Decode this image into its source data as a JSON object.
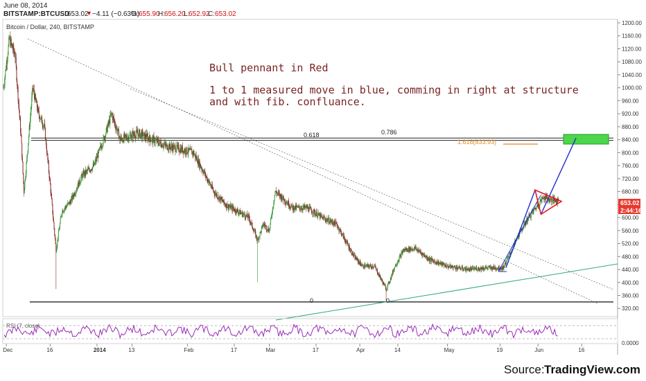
{
  "header": {
    "date": "June 08, 2014",
    "symbol": "BITSTAMP:BTCUSD",
    "last": "653.02",
    "change": "−4.11 (−0.63%)",
    "open_label": "O:",
    "open": "655.90",
    "high_label": "H:",
    "high": "656.20",
    "low_label": "L:",
    "low": "652.92",
    "close_label": "C:",
    "close": "653.02",
    "down_arrow": "▼"
  },
  "pane_title": "Bitcoin / Dollar, 240, BITSTAMP",
  "annotations": {
    "line1": "Bull pennant in Red",
    "line2": "1 to 1 measured move in blue, comming in right at structure",
    "line3": "and with fib. confluance."
  },
  "fib_labels": {
    "f0618": "0.618",
    "f0786": "0.786",
    "f1618": "1.618(833.93)",
    "zero_left": "0",
    "zero_right": "0"
  },
  "price_tag": {
    "price": "653.02",
    "timer": "2:44:16"
  },
  "rsi_label": "RSI (7, close)",
  "rsi_axis": "0.0000",
  "source": {
    "prefix": "Source: ",
    "name": "TradingView.com"
  },
  "colors": {
    "bull": "#3a9a3a",
    "bear": "#8b2a2a",
    "pennant": "#e8141a",
    "measured_move": "#1f2ecc",
    "trendline_green": "#2aa87a",
    "target_zone": "#4bd64b",
    "rsi_line": "#9a2ab8",
    "fib_1618": "#e08a1e",
    "price_tag": "#e8382e"
  },
  "chart_data": {
    "type": "candlestick",
    "title": "Bitcoin / Dollar, 240, BITSTAMP",
    "xlabel": "",
    "ylabel": "",
    "ylim": [
      300,
      1200
    ],
    "yticks": [
      320,
      360,
      400,
      440,
      480,
      520,
      560,
      600,
      640,
      680,
      720,
      760,
      800,
      840,
      880,
      920,
      960,
      1000,
      1040,
      1080,
      1120,
      1160,
      1200
    ],
    "ytick_labels": [
      "320.00",
      "360.00",
      "400.00",
      "440.00",
      "480.00",
      "520.00",
      "560.00",
      "600.00",
      "640.00",
      "680.00",
      "720.00",
      "760.00",
      "800.00",
      "840.00",
      "880.00",
      "920.00",
      "960.00",
      "1000.00",
      "1040.00",
      "1080.00",
      "1120.00",
      "1160.00",
      "1200.00"
    ],
    "xticks": [
      {
        "label": "Dec",
        "x": "2013-12-01"
      },
      {
        "label": "16",
        "x": "2013-12-16"
      },
      {
        "label": "2014",
        "x": "2014-01-01"
      },
      {
        "label": "13",
        "x": "2014-01-13"
      },
      {
        "label": "Feb",
        "x": "2014-02-01"
      },
      {
        "label": "17",
        "x": "2014-02-17"
      },
      {
        "label": "Mar",
        "x": "2014-03-01"
      },
      {
        "label": "17",
        "x": "2014-03-17"
      },
      {
        "label": "Apr",
        "x": "2014-04-01"
      },
      {
        "label": "14",
        "x": "2014-04-14"
      },
      {
        "label": "May",
        "x": "2014-05-01"
      },
      {
        "label": "19",
        "x": "2014-05-19"
      },
      {
        "label": "Jun",
        "x": "2014-06-01"
      },
      {
        "label": "16",
        "x": "2014-06-16"
      }
    ],
    "price_path": [
      [
        "2013-11-30",
        1000
      ],
      [
        "2013-12-02",
        1150
      ],
      [
        "2013-12-04",
        1100
      ],
      [
        "2013-12-06",
        850
      ],
      [
        "2013-12-07",
        680
      ],
      [
        "2013-12-08",
        780
      ],
      [
        "2013-12-10",
        1000
      ],
      [
        "2013-12-12",
        920
      ],
      [
        "2013-12-14",
        880
      ],
      [
        "2013-12-16",
        700
      ],
      [
        "2013-12-18",
        500
      ],
      [
        "2013-12-20",
        620
      ],
      [
        "2013-12-23",
        650
      ],
      [
        "2013-12-27",
        730
      ],
      [
        "2013-12-31",
        760
      ],
      [
        "2014-01-04",
        860
      ],
      [
        "2014-01-06",
        920
      ],
      [
        "2014-01-09",
        840
      ],
      [
        "2014-01-12",
        850
      ],
      [
        "2014-01-15",
        860
      ],
      [
        "2014-01-20",
        840
      ],
      [
        "2014-01-25",
        820
      ],
      [
        "2014-01-30",
        810
      ],
      [
        "2014-02-03",
        800
      ],
      [
        "2014-02-06",
        750
      ],
      [
        "2014-02-10",
        680
      ],
      [
        "2014-02-14",
        640
      ],
      [
        "2014-02-18",
        620
      ],
      [
        "2014-02-22",
        600
      ],
      [
        "2014-02-25",
        530
      ],
      [
        "2014-02-27",
        580
      ],
      [
        "2014-03-01",
        560
      ],
      [
        "2014-03-03",
        680
      ],
      [
        "2014-03-05",
        665
      ],
      [
        "2014-03-09",
        630
      ],
      [
        "2014-03-14",
        630
      ],
      [
        "2014-03-19",
        600
      ],
      [
        "2014-03-24",
        580
      ],
      [
        "2014-03-30",
        480
      ],
      [
        "2014-04-02",
        450
      ],
      [
        "2014-04-06",
        450
      ],
      [
        "2014-04-10",
        380
      ],
      [
        "2014-04-11",
        400
      ],
      [
        "2014-04-13",
        450
      ],
      [
        "2014-04-16",
        500
      ],
      [
        "2014-04-20",
        505
      ],
      [
        "2014-04-25",
        470
      ],
      [
        "2014-05-01",
        450
      ],
      [
        "2014-05-08",
        440
      ],
      [
        "2014-05-14",
        445
      ],
      [
        "2014-05-20",
        445
      ],
      [
        "2014-05-22",
        480
      ],
      [
        "2014-05-25",
        540
      ],
      [
        "2014-05-28",
        590
      ],
      [
        "2014-06-01",
        640
      ],
      [
        "2014-06-03",
        665
      ],
      [
        "2014-06-05",
        655
      ],
      [
        "2014-06-08",
        653
      ]
    ],
    "lows": [
      [
        "2013-12-18",
        380
      ],
      [
        "2014-02-25",
        400
      ],
      [
        "2014-04-10",
        340
      ]
    ],
    "horizontal_levels": [
      {
        "name": "0.618",
        "value": 840
      },
      {
        "name": "0.786",
        "value": 845
      },
      {
        "name": "0",
        "value": 340
      }
    ],
    "fib_1618": 833.93,
    "pennant": [
      [
        "2014-05-31",
        685
      ],
      [
        "2014-06-09",
        650
      ],
      [
        "2014-06-02",
        610
      ]
    ],
    "measured_move_legs": [
      [
        [
          "2014-05-21",
          445
        ],
        [
          "2014-05-31",
          685
        ]
      ],
      [
        [
          "2014-06-02",
          610
        ],
        [
          "2014-06-14",
          845
        ]
      ]
    ],
    "target_zone": {
      "x_from": "2014-06-11",
      "x_to": "2014-06-18",
      "y_from": 833,
      "y_to": 860
    },
    "rsi": {
      "name": "RSI (7, close)"
    },
    "last_price": 653.02
  }
}
